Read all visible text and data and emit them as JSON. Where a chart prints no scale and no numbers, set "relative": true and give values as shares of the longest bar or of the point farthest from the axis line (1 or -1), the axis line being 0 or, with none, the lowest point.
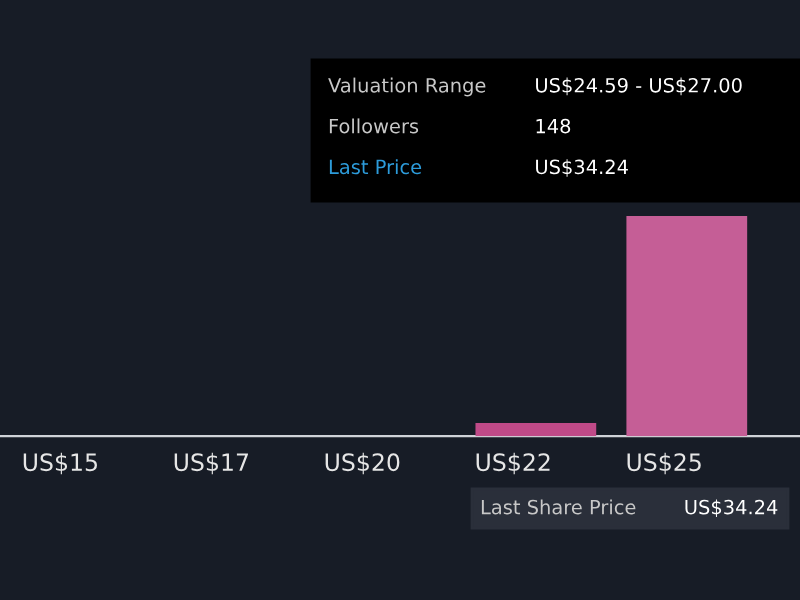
{
  "chart_data": {
    "type": "bar",
    "relative": true,
    "categories": [
      "US$15",
      "US$17",
      "US$20",
      "US$22",
      "US$25"
    ],
    "values": [
      0,
      0,
      0,
      0.06,
      1
    ],
    "colors": [
      "#c55e96",
      "#c55e96",
      "#c55e96",
      "#c04a88",
      "#c55e96"
    ],
    "annotations": [
      "Valuation Range",
      "US$24.59 - US$27.00",
      "Followers",
      "148",
      "Last Price",
      "US$34.24",
      "Last Share Price",
      "US$34.24"
    ],
    "grid": false,
    "legend": false
  }
}
